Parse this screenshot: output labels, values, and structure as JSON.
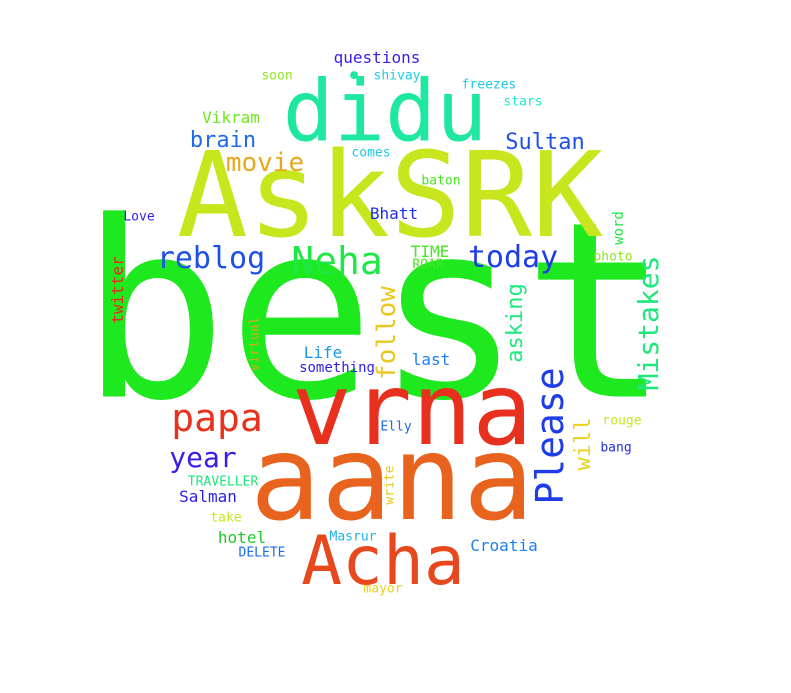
{
  "words": [
    {
      "text": "best",
      "color": "#1ee81e"
    },
    {
      "text": "AskSRK",
      "color": "#c8e61e"
    },
    {
      "text": "aana",
      "color": "#e8641e"
    },
    {
      "text": "vrna",
      "color": "#e8301e"
    },
    {
      "text": "didu",
      "color": "#1ee8a0"
    },
    {
      "text": "Acha",
      "color": "#e8481e"
    },
    {
      "text": "Please",
      "color": "#1e3ce8"
    },
    {
      "text": "papa",
      "color": "#e8321e"
    },
    {
      "text": "Neha",
      "color": "#1ee846"
    },
    {
      "text": "Mistakes",
      "color": "#1ee87c"
    },
    {
      "text": "today",
      "color": "#1e3ce8"
    },
    {
      "text": "reblog",
      "color": "#1e50e8"
    },
    {
      "text": "year",
      "color": "#3a1ee8"
    },
    {
      "text": "movie",
      "color": "#e8a81e"
    },
    {
      "text": "follow",
      "color": "#e8c81e"
    },
    {
      "text": "Sultan",
      "color": "#1e50e8"
    },
    {
      "text": "brain",
      "color": "#1e6ae8"
    },
    {
      "text": "asking",
      "color": "#1ee880"
    },
    {
      "text": "will",
      "color": "#e8d21e"
    },
    {
      "text": "questions",
      "color": "#3a1ee8"
    },
    {
      "text": "Vikram",
      "color": "#6ee81e"
    },
    {
      "text": "Bhatt",
      "color": "#1e2ee8"
    },
    {
      "text": "twitter",
      "color": "#e8281e"
    },
    {
      "text": "Life",
      "color": "#1e96e8"
    },
    {
      "text": "last",
      "color": "#1e82e8"
    },
    {
      "text": "TIME",
      "color": "#46e81e"
    },
    {
      "text": "Salman",
      "color": "#2a1ee8"
    },
    {
      "text": "hotel",
      "color": "#1ec828"
    },
    {
      "text": "Croatia",
      "color": "#1e82e8"
    },
    {
      "text": "something",
      "color": "#2e1ee8"
    },
    {
      "text": "word",
      "color": "#1ee846"
    },
    {
      "text": "Love",
      "color": "#2e1ee8"
    },
    {
      "text": "soon",
      "color": "#8ee81e"
    },
    {
      "text": "●",
      "color": "#1ee8a0"
    },
    {
      "text": "shivay",
      "color": "#1ecde8"
    },
    {
      "text": "freezes",
      "color": "#1ec8e8"
    },
    {
      "text": "stars",
      "color": "#1ee8d2"
    },
    {
      "text": "comes",
      "color": "#1ec8e8"
    },
    {
      "text": "baton",
      "color": "#46e81e"
    },
    {
      "text": "ROAR",
      "color": "#46e81e"
    },
    {
      "text": "photo",
      "color": "#8ee81e"
    },
    {
      "text": "virtual",
      "color": "#e8a01e"
    },
    {
      "text": "Elly",
      "color": "#1e6ae8"
    },
    {
      "text": "rouge",
      "color": "#c8e61e"
    },
    {
      "text": "bang",
      "color": "#1e2ee8"
    },
    {
      "text": "TRAVELLER",
      "color": "#1ee87c"
    },
    {
      "text": "write",
      "color": "#e8c81e"
    },
    {
      "text": "take",
      "color": "#c8e61e"
    },
    {
      "text": "Masrur",
      "color": "#1eb4e8"
    },
    {
      "text": "DELETE",
      "color": "#1e6ae8"
    },
    {
      "text": "mayor",
      "color": "#e8d21e"
    }
  ]
}
